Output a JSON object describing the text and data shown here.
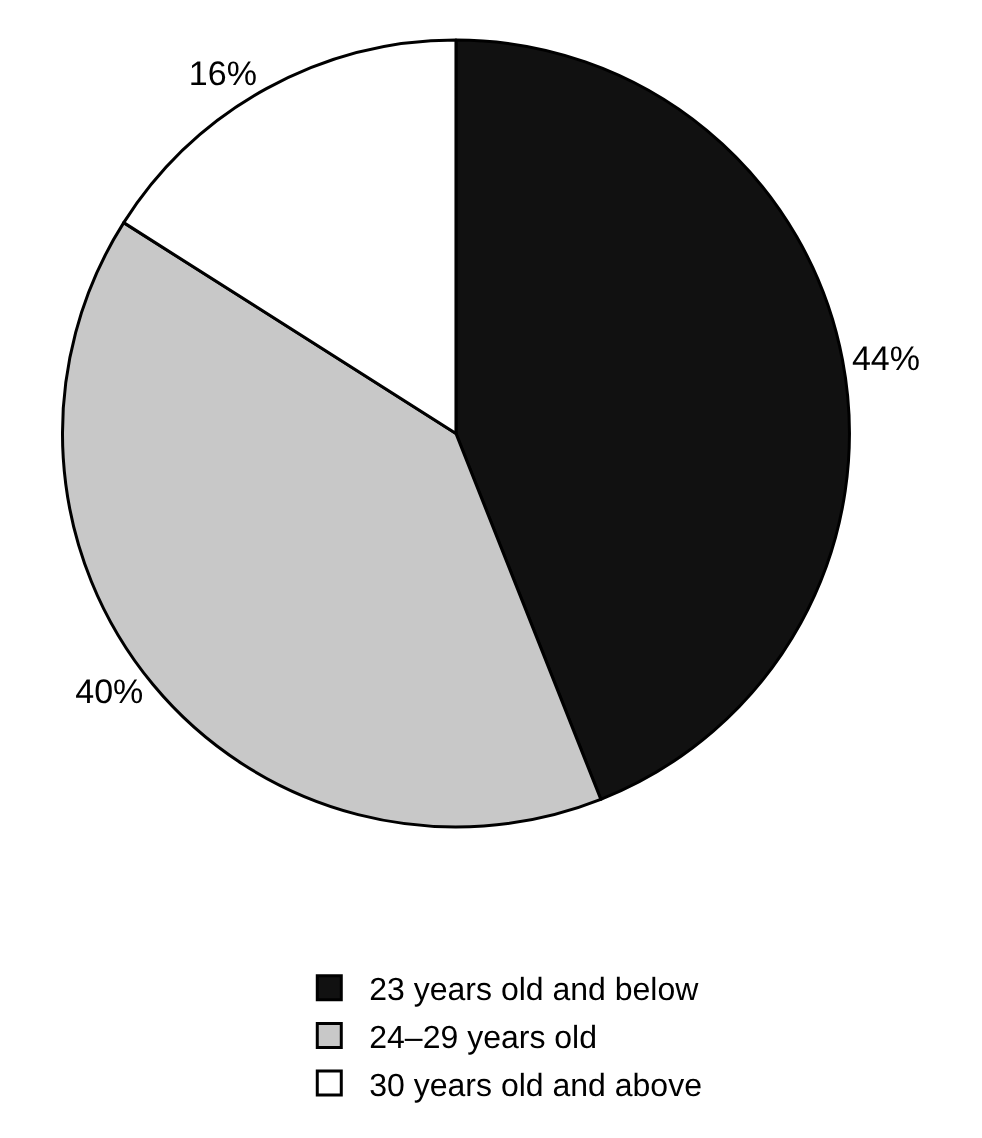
{
  "chart_data": {
    "type": "pie",
    "categories": [
      "23 years old and below",
      "24–29 years old",
      "30 years old and above"
    ],
    "values": [
      44,
      40,
      16
    ],
    "colors": [
      "#111111",
      "#c8c8c8",
      "#ffffff"
    ],
    "value_labels": [
      "44%",
      "40%",
      "16%"
    ],
    "legend": "bottom"
  }
}
